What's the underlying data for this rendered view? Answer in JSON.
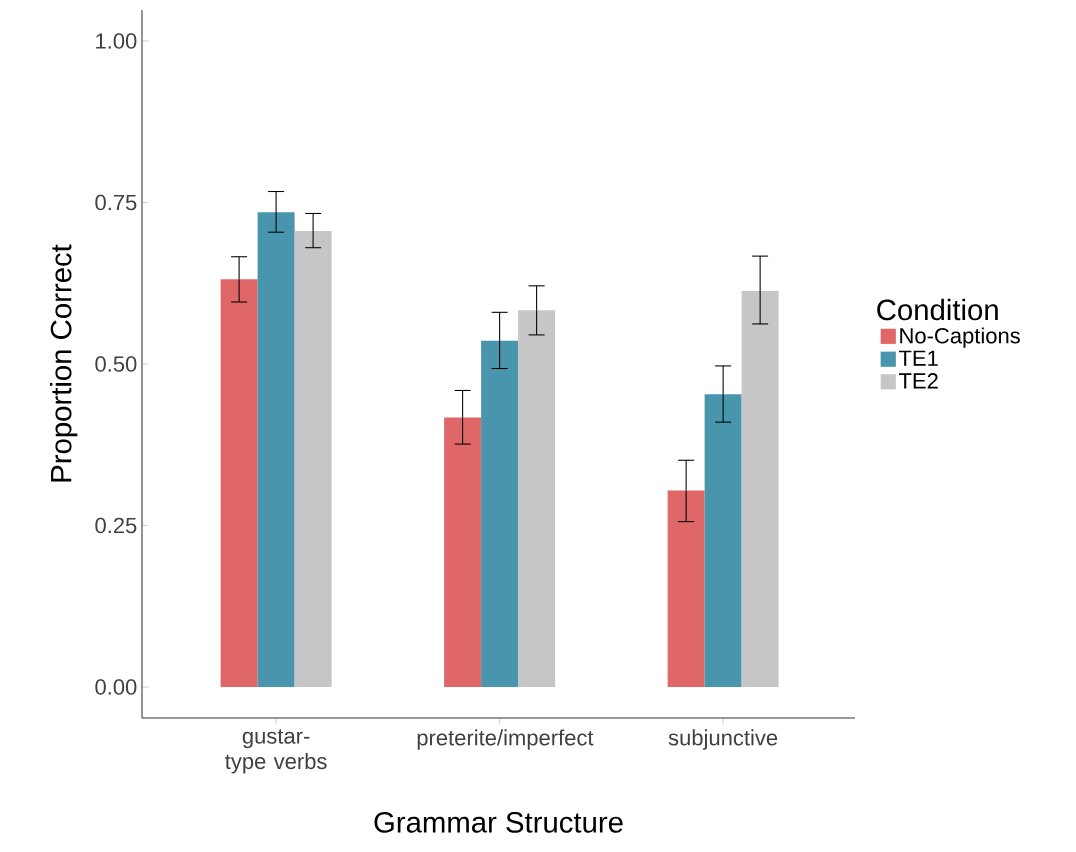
{
  "chart_data": {
    "type": "bar",
    "xlabel": "Grammar Structure",
    "ylabel": "Proportion Correct",
    "legend_title": "Condition",
    "categories": [
      "gustar-type verbs",
      "preterite/imperfect",
      "subjunctive"
    ],
    "series": [
      {
        "name": "No-Captions",
        "color": "#e06767",
        "values": [
          0.631,
          0.417,
          0.304
        ],
        "errors": [
          [
            0.596,
            0.666
          ],
          [
            0.376,
            0.459
          ],
          [
            0.256,
            0.351
          ]
        ]
      },
      {
        "name": "TE1",
        "color": "#4a95ae",
        "values": [
          0.735,
          0.536,
          0.453
        ],
        "errors": [
          [
            0.704,
            0.767
          ],
          [
            0.493,
            0.58
          ],
          [
            0.41,
            0.497
          ]
        ]
      },
      {
        "name": "TE2",
        "color": "#c6c6c6",
        "values": [
          0.706,
          0.583,
          0.613
        ],
        "errors": [
          [
            0.68,
            0.733
          ],
          [
            0.545,
            0.621
          ],
          [
            0.562,
            0.667
          ]
        ]
      }
    ],
    "ylim": [
      -0.048,
      1.048
    ],
    "yticks": [
      {
        "value": 0,
        "label": "0.00"
      },
      {
        "value": 0.25,
        "label": "0.25"
      },
      {
        "value": 0.5,
        "label": "0.50"
      },
      {
        "value": 0.75,
        "label": "0.75"
      },
      {
        "value": 1,
        "label": "1.00"
      }
    ],
    "grid": false,
    "legend": "right"
  }
}
